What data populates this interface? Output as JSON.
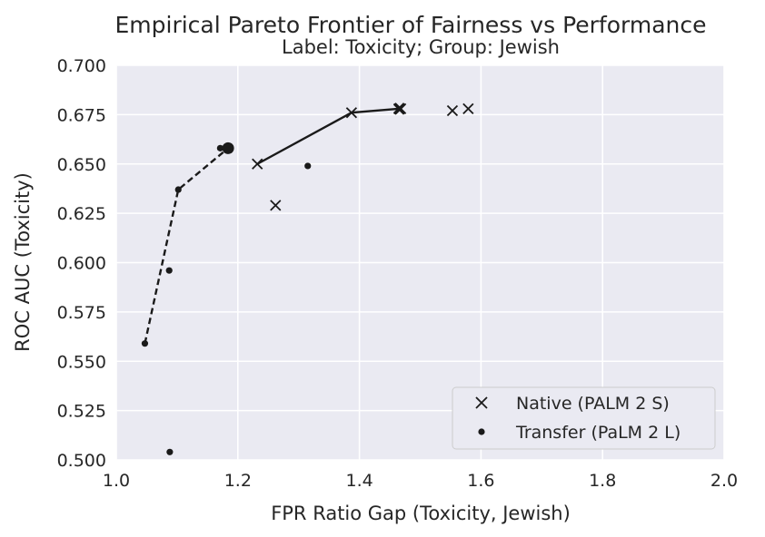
{
  "chart_data": {
    "type": "scatter",
    "title": "Empirical Pareto Frontier of Fairness vs Performance",
    "subtitle": "Label: Toxicity; Group: Jewish",
    "xlabel": "FPR Ratio Gap (Toxicity, Jewish)",
    "ylabel": "ROC AUC (Toxicity)",
    "xlim": [
      1.0,
      2.0
    ],
    "ylim": [
      0.5,
      0.7
    ],
    "xticks": [
      "1.0",
      "1.2",
      "1.4",
      "1.6",
      "1.8",
      "2.0"
    ],
    "yticks": [
      "0.500",
      "0.525",
      "0.550",
      "0.575",
      "0.600",
      "0.625",
      "0.650",
      "0.675",
      "0.700"
    ],
    "grid": true,
    "legend_position": "lower-right",
    "colors": {
      "background": "#eaeaf2",
      "grid": "#ffffff",
      "marker": "#1a1a1a"
    },
    "series": [
      {
        "name": "Native (PALM 2 S)",
        "marker": "x",
        "points": [
          {
            "x": 1.232,
            "y": 0.65
          },
          {
            "x": 1.262,
            "y": 0.629
          },
          {
            "x": 1.387,
            "y": 0.676
          },
          {
            "x": 1.465,
            "y": 0.678
          },
          {
            "x": 1.468,
            "y": 0.678
          },
          {
            "x": 1.553,
            "y": 0.677
          },
          {
            "x": 1.579,
            "y": 0.678
          }
        ],
        "highlight": {
          "x": 1.466,
          "y": 0.678
        },
        "frontier": [
          {
            "x": 1.232,
            "y": 0.65
          },
          {
            "x": 1.387,
            "y": 0.676
          },
          {
            "x": 1.466,
            "y": 0.678
          }
        ]
      },
      {
        "name": "Transfer (PaLM 2 L)",
        "marker": "dot",
        "points": [
          {
            "x": 1.047,
            "y": 0.559
          },
          {
            "x": 1.087,
            "y": 0.596
          },
          {
            "x": 1.088,
            "y": 0.504
          },
          {
            "x": 1.102,
            "y": 0.637
          },
          {
            "x": 1.171,
            "y": 0.658
          },
          {
            "x": 1.315,
            "y": 0.649
          }
        ],
        "highlight": {
          "x": 1.184,
          "y": 0.658
        },
        "frontier": [
          {
            "x": 1.047,
            "y": 0.559
          },
          {
            "x": 1.102,
            "y": 0.637
          },
          {
            "x": 1.184,
            "y": 0.658
          }
        ]
      }
    ]
  }
}
